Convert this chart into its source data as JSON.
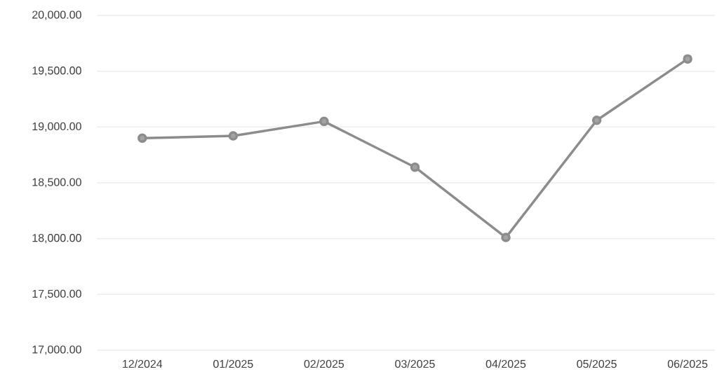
{
  "chart_data": {
    "type": "line",
    "categories": [
      "12/2024",
      "01/2025",
      "02/2025",
      "03/2025",
      "04/2025",
      "05/2025",
      "06/2025"
    ],
    "values": [
      18900,
      18920,
      19050,
      18640,
      18010,
      19060,
      19610
    ],
    "color": "#8c8c8c",
    "marker": "circle",
    "line_style": "solid",
    "grid": "y",
    "ylim": [
      17000,
      20000
    ],
    "yticks": [
      {
        "value": 17000,
        "label": "17,000.00"
      },
      {
        "value": 17500,
        "label": "17,500.00"
      },
      {
        "value": 18000,
        "label": "18,000.00"
      },
      {
        "value": 18500,
        "label": "18,500.00"
      },
      {
        "value": 19000,
        "label": "19,000.00"
      },
      {
        "value": 19500,
        "label": "19,500.00"
      },
      {
        "value": 20000,
        "label": "20,000.00"
      }
    ]
  }
}
